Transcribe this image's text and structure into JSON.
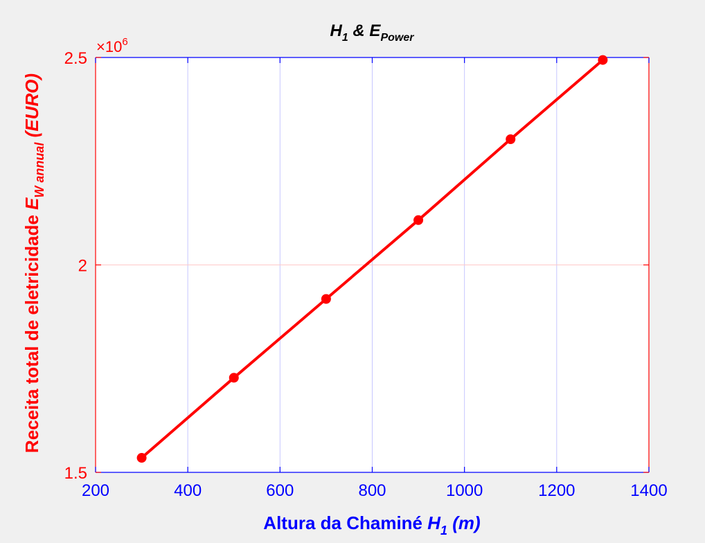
{
  "chart_data": {
    "type": "line",
    "title": {
      "main": "H",
      "main_sub": "1",
      "conj": " & E",
      "conj_sub": "Power"
    },
    "xlabel": {
      "main": "Altura da Chaminé ",
      "var": "H",
      "sub": "1",
      "unit": " (m)"
    },
    "ylabel": {
      "main": "Receita total de eletricidade ",
      "var": "E",
      "sub": "W annual",
      "unit": " (EURO)"
    },
    "multiplier": {
      "base": "×10",
      "exp": "6"
    },
    "xlim": [
      200,
      1400
    ],
    "ylim": [
      1.5,
      2.5
    ],
    "x_ticks": [
      200,
      400,
      600,
      800,
      1000,
      1200,
      1400
    ],
    "y_ticks": [
      1.5,
      2,
      2.5
    ],
    "x_tick_labels": [
      "200",
      "400",
      "600",
      "800",
      "1000",
      "1200",
      "1400"
    ],
    "y_tick_labels": [
      "1.5",
      "2",
      "2.5"
    ],
    "grid": true,
    "series": [
      {
        "x": [
          300,
          500,
          700,
          900,
          1100,
          1300
        ],
        "y": [
          1.535,
          1.728,
          1.918,
          2.108,
          2.303,
          2.494
        ],
        "color": "#ff0000",
        "marker": "circle"
      }
    ],
    "colors": {
      "x_axis": "#0000ff",
      "y_axis": "#ff0000",
      "x_grid": "#c6c6ff",
      "y_grid": "#ffc8c8",
      "title": "#000000"
    }
  }
}
